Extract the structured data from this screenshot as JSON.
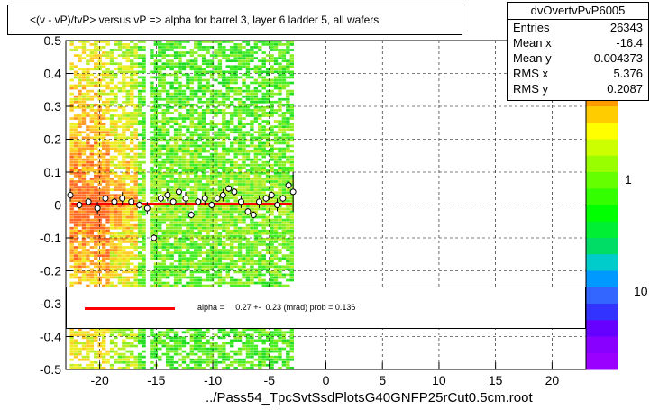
{
  "title": "<(v - vP)/tvP> versus   vP => alpha for barrel 3, layer 6 ladder 5, all wafers",
  "footer": "../Pass54_TpcSvtSsdPlotsG40GNFP25rCut0.5cm.root",
  "stats": {
    "name": "dvOvertvPvP6005",
    "rows": [
      {
        "label": "Entries",
        "value": "26343"
      },
      {
        "label": "Mean x",
        "value": "-16.4"
      },
      {
        "label": "Mean y",
        "value": "0.004373"
      },
      {
        "label": "RMS x",
        "value": "5.376"
      },
      {
        "label": "RMS y",
        "value": "0.2087"
      }
    ]
  },
  "fit_legend": "alpha =     0.27 +-  0.23 (mrad) prob = 0.136",
  "colors": {
    "fit_line": "#ff0000",
    "grid": "#000000",
    "frame": "#000000"
  },
  "chart_data": {
    "type": "scatter",
    "xlim": [
      -23,
      23
    ],
    "ylim": [
      -0.5,
      0.5
    ],
    "x_ticks": [
      -20,
      -15,
      -10,
      -5,
      0,
      5,
      10,
      15,
      20
    ],
    "y_ticks": [
      -0.5,
      -0.4,
      -0.3,
      -0.2,
      -0.1,
      0,
      0.1,
      0.2,
      0.3,
      0.4,
      0.5
    ],
    "z_scale": "log",
    "z_tick_labels": [
      "1",
      "10"
    ],
    "grid": true,
    "profile_points": [
      {
        "x": -22.6,
        "y": 0.03
      },
      {
        "x": -21.8,
        "y": 0.0
      },
      {
        "x": -21.0,
        "y": 0.01
      },
      {
        "x": -20.2,
        "y": -0.01
      },
      {
        "x": -19.5,
        "y": 0.02
      },
      {
        "x": -18.7,
        "y": 0.01
      },
      {
        "x": -18.0,
        "y": 0.02
      },
      {
        "x": -17.2,
        "y": 0.01
      },
      {
        "x": -16.5,
        "y": 0.0
      },
      {
        "x": -15.8,
        "y": -0.01
      },
      {
        "x": -15.2,
        "y": -0.1
      },
      {
        "x": -14.6,
        "y": 0.02
      },
      {
        "x": -14.0,
        "y": 0.03
      },
      {
        "x": -13.5,
        "y": 0.01
      },
      {
        "x": -13.0,
        "y": 0.04
      },
      {
        "x": -12.4,
        "y": 0.02
      },
      {
        "x": -11.9,
        "y": -0.03
      },
      {
        "x": -11.3,
        "y": 0.01
      },
      {
        "x": -10.7,
        "y": 0.02
      },
      {
        "x": -10.1,
        "y": 0.0
      },
      {
        "x": -9.6,
        "y": 0.02
      },
      {
        "x": -9.1,
        "y": 0.03
      },
      {
        "x": -8.6,
        "y": 0.05
      },
      {
        "x": -8.1,
        "y": 0.04
      },
      {
        "x": -7.5,
        "y": 0.01
      },
      {
        "x": -6.9,
        "y": -0.02
      },
      {
        "x": -6.4,
        "y": -0.03
      },
      {
        "x": -5.9,
        "y": 0.01
      },
      {
        "x": -5.3,
        "y": 0.02
      },
      {
        "x": -4.8,
        "y": 0.03
      },
      {
        "x": -4.3,
        "y": 0.0
      },
      {
        "x": -3.8,
        "y": 0.02
      },
      {
        "x": -3.3,
        "y": 0.06
      },
      {
        "x": -2.9,
        "y": 0.04
      }
    ],
    "fit_line": {
      "x": [
        -22.5,
        -3.0
      ],
      "y": [
        0.0027,
        0.0027
      ]
    }
  }
}
